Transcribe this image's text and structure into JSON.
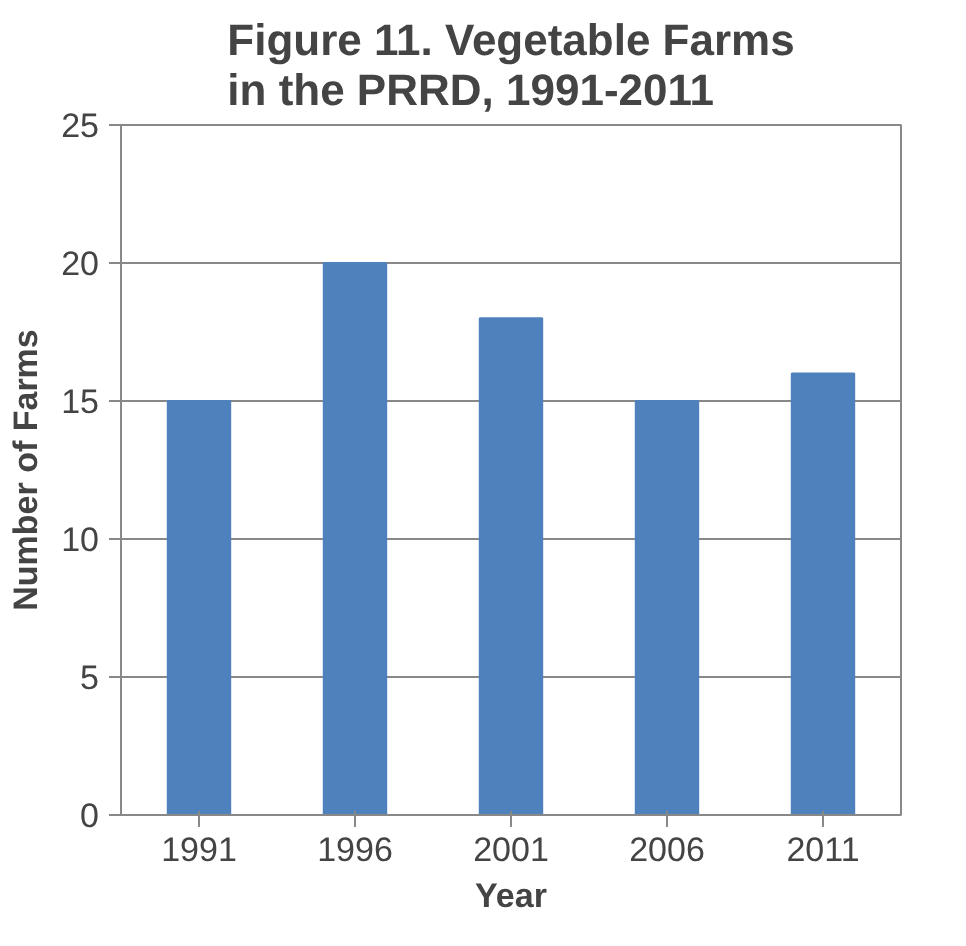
{
  "chart_data": {
    "type": "bar",
    "title": "Figure 11. Vegetable Farms\nin the PRRD, 1991-2011",
    "xlabel": "Year",
    "ylabel": "Number of Farms",
    "categories": [
      "1991",
      "1996",
      "2001",
      "2006",
      "2011"
    ],
    "values": [
      15,
      20,
      18,
      15,
      16
    ],
    "color": "#4f81bd",
    "ylim": [
      0,
      25
    ],
    "yticks": [
      0,
      5,
      10,
      15,
      20,
      25
    ],
    "grid": "y"
  }
}
